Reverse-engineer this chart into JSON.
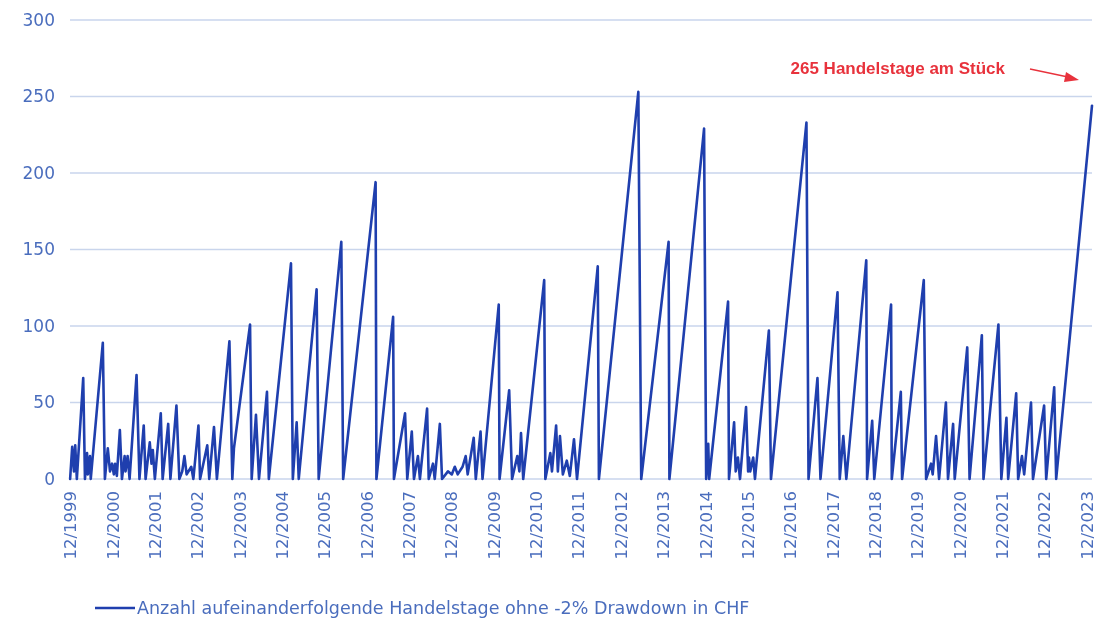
{
  "chart_data": {
    "type": "line",
    "annotations": [
      "265 Handelstage am Stück"
    ],
    "xlim": [
      "1999-12-01",
      "2024-01-19"
    ],
    "xticks": [
      {
        "value": "1999-12",
        "label": "12/1999"
      },
      {
        "value": "2000-12",
        "label": "12/2000"
      },
      {
        "value": "2001-12",
        "label": "12/2001"
      },
      {
        "value": "2002-12",
        "label": "12/2002"
      },
      {
        "value": "2003-12",
        "label": "12/2003"
      },
      {
        "value": "2004-12",
        "label": "12/2004"
      },
      {
        "value": "2005-12",
        "label": "12/2005"
      },
      {
        "value": "2006-12",
        "label": "12/2006"
      },
      {
        "value": "2007-12",
        "label": "12/2007"
      },
      {
        "value": "2008-12",
        "label": "12/2008"
      },
      {
        "value": "2009-12",
        "label": "12/2009"
      },
      {
        "value": "2010-12",
        "label": "12/2010"
      },
      {
        "value": "2011-12",
        "label": "12/2011"
      },
      {
        "value": "2012-12",
        "label": "12/2012"
      },
      {
        "value": "2013-12",
        "label": "12/2013"
      },
      {
        "value": "2014-12",
        "label": "12/2014"
      },
      {
        "value": "2015-12",
        "label": "12/2015"
      },
      {
        "value": "2016-12",
        "label": "12/2016"
      },
      {
        "value": "2017-12",
        "label": "12/2017"
      },
      {
        "value": "2018-12",
        "label": "12/2018"
      },
      {
        "value": "2019-12",
        "label": "12/2019"
      },
      {
        "value": "2020-12",
        "label": "12/2020"
      },
      {
        "value": "2021-12",
        "label": "12/2021"
      },
      {
        "value": "2022-12",
        "label": "12/2022"
      },
      {
        "value": "2023-12",
        "label": "12/2023"
      }
    ],
    "ylim": [
      0,
      300
    ],
    "yticks": [
      0,
      50,
      100,
      150,
      200,
      250,
      300
    ],
    "grid": "y",
    "legend": "bottom",
    "marker": "none",
    "line_style": "solid",
    "series": [
      {
        "name": "Anzahl aufeinanderfolgende Handelstage ohne -2% Drawdown in CHF",
        "color": "#1f3fae",
        "x": [
          "1999-12-02",
          "1999-12-20",
          "2000-01-04",
          "2000-01-15",
          "2000-01-29",
          "2000-03-24",
          "2000-04-08",
          "2000-04-26",
          "2000-05-03",
          "2000-05-21",
          "2000-05-28",
          "2000-09-09",
          "2000-09-27",
          "2000-10-22",
          "2000-11-10",
          "2000-11-28",
          "2000-12-13",
          "2000-12-24",
          "2001-01-08",
          "2001-02-03",
          "2001-02-21",
          "2001-03-16",
          "2001-03-24",
          "2001-04-11",
          "2001-04-28",
          "2001-06-27",
          "2001-07-22",
          "2001-08-28",
          "2001-09-13",
          "2001-10-19",
          "2001-11-03",
          "2001-11-14",
          "2001-12-02",
          "2002-01-22",
          "2002-02-07",
          "2002-03-27",
          "2002-04-15",
          "2002-06-06",
          "2002-07-01",
          "2002-07-26",
          "2002-08-14",
          "2002-09-02",
          "2002-10-12",
          "2002-10-30",
          "2002-12-13",
          "2002-12-27",
          "2003-02-27",
          "2003-03-16",
          "2003-04-26",
          "2003-05-21",
          "2003-09-06",
          "2003-10-01",
          "2003-10-15",
          "2004-03-02",
          "2004-03-16",
          "2004-04-22",
          "2004-05-18",
          "2004-07-26",
          "2004-08-11",
          "2005-02-18",
          "2005-03-06",
          "2005-04-08",
          "2005-04-26",
          "2005-09-27",
          "2005-10-15",
          "2006-04-28",
          "2006-05-14",
          "2007-02-18",
          "2007-02-25",
          "2007-07-19",
          "2007-07-26",
          "2007-10-30",
          "2007-11-18",
          "2007-12-27",
          "2008-01-15",
          "2008-02-18",
          "2008-03-06",
          "2008-05-07",
          "2008-05-21",
          "2008-06-27",
          "2008-07-12",
          "2008-08-25",
          "2008-09-13",
          "2008-11-03",
          "2008-12-06",
          "2009-01-01",
          "2009-01-26",
          "2009-03-09",
          "2009-04-05",
          "2009-04-22",
          "2009-06-13",
          "2009-07-01",
          "2009-08-11",
          "2009-08-28",
          "2010-01-15",
          "2010-01-22",
          "2010-04-15",
          "2010-05-10",
          "2010-06-24",
          "2010-07-12",
          "2010-07-26",
          "2010-08-14",
          "2011-02-11",
          "2011-02-21",
          "2011-04-05",
          "2011-04-19",
          "2011-05-25",
          "2011-06-09",
          "2011-06-27",
          "2011-07-22",
          "2011-08-25",
          "2011-09-20",
          "2011-10-26",
          "2011-11-21",
          "2012-05-18",
          "2012-05-28",
          "2013-05-03",
          "2013-05-28",
          "2014-01-19",
          "2014-01-26",
          "2014-11-21",
          "2014-12-09",
          "2014-12-27",
          "2015-01-04",
          "2015-06-16",
          "2015-06-24",
          "2015-08-07",
          "2015-08-21",
          "2015-09-09",
          "2015-09-27",
          "2015-11-18",
          "2015-12-06",
          "2015-12-13",
          "2015-12-24",
          "2016-01-19",
          "2016-02-03",
          "2016-06-02",
          "2016-06-20",
          "2017-04-22",
          "2017-05-10",
          "2017-07-26",
          "2017-08-21",
          "2018-01-15",
          "2018-02-03",
          "2018-03-06",
          "2018-04-01",
          "2018-09-20",
          "2018-09-27",
          "2018-11-10",
          "2018-11-28",
          "2019-04-22",
          "2019-04-28",
          "2019-07-15",
          "2019-07-26",
          "2020-01-29",
          "2020-02-18",
          "2020-04-01",
          "2020-04-15",
          "2020-05-14",
          "2020-06-09",
          "2020-08-07",
          "2020-08-25",
          "2020-10-08",
          "2020-10-22",
          "2021-02-07",
          "2021-02-27",
          "2021-06-13",
          "2021-06-27",
          "2021-11-03",
          "2021-11-28",
          "2022-01-11",
          "2022-01-26",
          "2022-04-05",
          "2022-04-22",
          "2022-05-25",
          "2022-06-13",
          "2022-08-11",
          "2022-08-28",
          "2022-12-02",
          "2022-12-20",
          "2023-02-27",
          "2023-03-16",
          "2024-01-19"
        ],
        "values": [
          0,
          21,
          5,
          22,
          0,
          66,
          0,
          17,
          3,
          15,
          0,
          89,
          0,
          20,
          5,
          10,
          3,
          10,
          2,
          32,
          0,
          15,
          5,
          15,
          0,
          68,
          0,
          35,
          0,
          24,
          10,
          19,
          0,
          43,
          0,
          36,
          0,
          48,
          0,
          5,
          15,
          3,
          8,
          0,
          35,
          0,
          22,
          0,
          34,
          0,
          90,
          0,
          20,
          101,
          0,
          42,
          0,
          57,
          0,
          141,
          0,
          37,
          0,
          124,
          0,
          155,
          0,
          194,
          0,
          106,
          0,
          43,
          0,
          31,
          0,
          15,
          0,
          46,
          0,
          10,
          0,
          36,
          0,
          5,
          3,
          8,
          3,
          8,
          15,
          3,
          27,
          0,
          31,
          0,
          114,
          0,
          58,
          0,
          15,
          5,
          30,
          0,
          130,
          0,
          17,
          5,
          35,
          5,
          28,
          3,
          12,
          2,
          26,
          0,
          139,
          0,
          253,
          0,
          155,
          0,
          229,
          0,
          23,
          0,
          116,
          0,
          37,
          5,
          14,
          0,
          47,
          5,
          14,
          5,
          14,
          0,
          97,
          0,
          233,
          0,
          66,
          0,
          122,
          0,
          28,
          0,
          143,
          0,
          38,
          0,
          114,
          0,
          57,
          0,
          130,
          0,
          10,
          3,
          28,
          0,
          50,
          0,
          36,
          0,
          86,
          0,
          94,
          0,
          101,
          0,
          40,
          0,
          56,
          0,
          15,
          3,
          50,
          0,
          48,
          0,
          60,
          0,
          244
        ]
      }
    ]
  }
}
